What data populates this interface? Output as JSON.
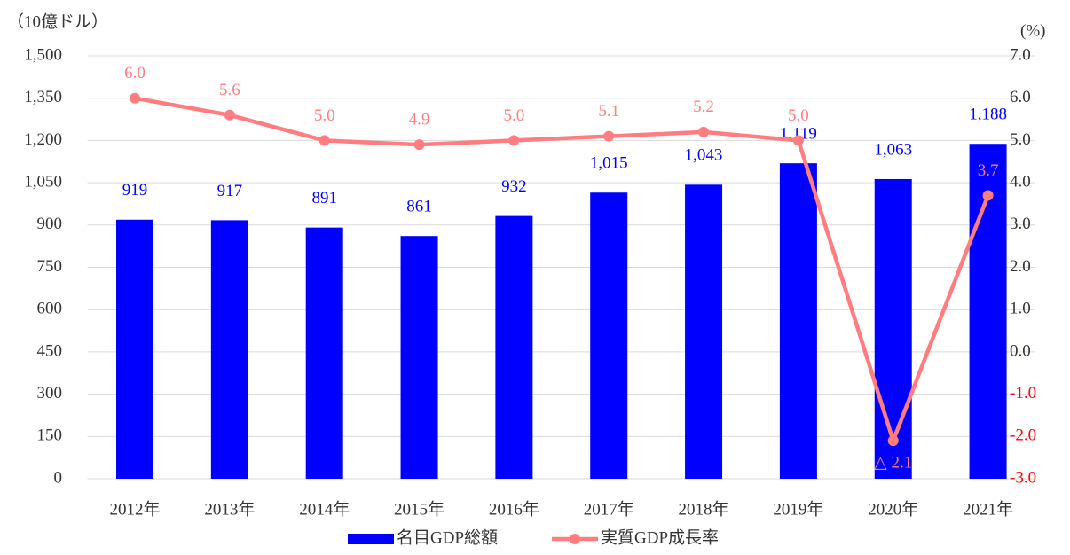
{
  "chart_data": {
    "type": "bar-line",
    "y_label": "（10億ドル）",
    "y2_label": "(%)",
    "categories": [
      "2012年",
      "2013年",
      "2014年",
      "2015年",
      "2016年",
      "2017年",
      "2018年",
      "2019年",
      "2020年",
      "2021年"
    ],
    "series": [
      {
        "name": "名目GDP総額",
        "type": "bar",
        "color": "#0000ff",
        "axis": "y",
        "values": [
          919,
          917,
          891,
          861,
          932,
          1015,
          1043,
          1119,
          1063,
          1188
        ],
        "value_labels": [
          "919",
          "917",
          "891",
          "861",
          "932",
          "1,015",
          "1,043",
          "1,119",
          "1,063",
          "1,188"
        ]
      },
      {
        "name": "実質GDP成長率",
        "type": "line",
        "color": "#ff7c80",
        "axis": "y2",
        "values": [
          6.0,
          5.6,
          5.0,
          4.9,
          5.0,
          5.1,
          5.2,
          5.0,
          -2.1,
          3.7
        ],
        "value_labels": [
          "6.0",
          "5.6",
          "5.0",
          "4.9",
          "5.0",
          "5.1",
          "5.2",
          "5.0",
          "△ 2.1",
          "3.7"
        ]
      }
    ],
    "ylim": [
      0,
      1500
    ],
    "yticks": [
      0,
      150,
      300,
      450,
      600,
      750,
      900,
      {
        "value": 1050,
        "label": "1,050"
      },
      {
        "value": 1200,
        "label": "1,200"
      },
      {
        "value": 1350,
        "label": "1,350"
      },
      {
        "value": 1500,
        "label": "1,500"
      }
    ],
    "y2lim": [
      -3,
      7
    ],
    "y2ticks": [
      {
        "value": -3,
        "label": "-3.0"
      },
      {
        "value": -2,
        "label": "-2.0"
      },
      {
        "value": -1,
        "label": "-1.0"
      },
      {
        "value": 0,
        "label": "0.0"
      },
      {
        "value": 1,
        "label": "1.0"
      },
      {
        "value": 2,
        "label": "2.0"
      },
      {
        "value": 3,
        "label": "3.0"
      },
      {
        "value": 4,
        "label": "4.0"
      },
      {
        "value": 5,
        "label": "5.0"
      },
      {
        "value": 6,
        "label": "6.0"
      },
      {
        "value": 7,
        "label": "7.0"
      }
    ],
    "grid": true,
    "legend": "bottom"
  }
}
